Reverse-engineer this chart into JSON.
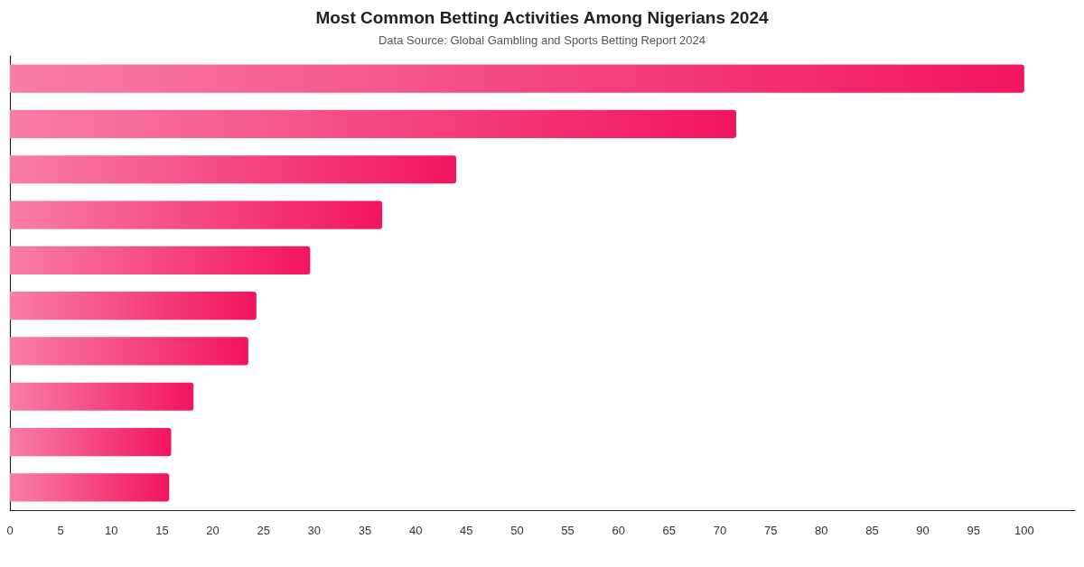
{
  "chart_data": {
    "type": "bar",
    "orientation": "horizontal",
    "title": "Most Common Betting Activities Among Nigerians 2024",
    "subtitle": "Data Source: Global Gambling and Sports Betting Report 2024",
    "categories": [
      null,
      null,
      null,
      null,
      null,
      null,
      null,
      null,
      null,
      null
    ],
    "values": [
      100,
      71.6,
      44,
      36.7,
      29.6,
      24.3,
      23.5,
      18.1,
      15.9,
      15.7
    ],
    "color": "#f2145f",
    "xlim": [
      0,
      105
    ],
    "xticks": [
      0,
      5,
      10,
      15,
      20,
      25,
      30,
      35,
      40,
      45,
      50,
      55,
      60,
      65,
      70,
      75,
      80,
      85,
      90,
      95,
      100
    ],
    "tick_labels": "x"
  }
}
